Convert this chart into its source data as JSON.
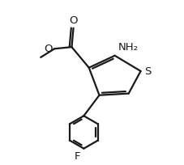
{
  "bg_color": "#ffffff",
  "line_color": "#1a1a1a",
  "line_width": 1.6,
  "font_size": 9.5,
  "label_O": "O",
  "label_NH2": "NH₂",
  "label_S": "S",
  "label_F": "F",
  "label_methoxy": "O"
}
